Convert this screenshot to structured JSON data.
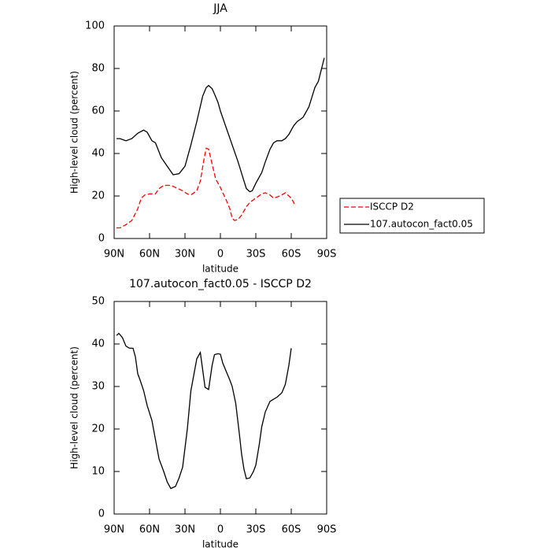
{
  "chart_data": [
    {
      "type": "line",
      "title": "JJA",
      "x_label": "latitude",
      "y_label": "High-level cloud (percent)",
      "xlim": [
        90,
        -90
      ],
      "xticks": [
        {
          "value": 90,
          "label": "90N"
        },
        {
          "value": 60,
          "label": "60N"
        },
        {
          "value": 30,
          "label": "30N"
        },
        0,
        {
          "value": -30,
          "label": "30S"
        },
        {
          "value": -60,
          "label": "60S"
        },
        {
          "value": -90,
          "label": "90S"
        }
      ],
      "ylim": [
        0,
        100
      ],
      "yticks": [
        0,
        20,
        40,
        60,
        80,
        100
      ],
      "legend": "right",
      "series": [
        {
          "name": "ISCCP D2",
          "color": "#ff0000",
          "style": "dashed",
          "x": [
            88,
            85,
            80,
            75,
            70,
            67,
            64,
            60,
            55,
            52,
            48,
            42,
            38,
            32,
            28,
            25,
            20,
            17,
            14,
            12,
            10,
            7,
            4,
            0,
            -5,
            -8,
            -10,
            -12,
            -15,
            -18,
            -22,
            -25,
            -30,
            -35,
            -38,
            -42,
            -45,
            -48,
            -52,
            -55,
            -58,
            -60,
            -63
          ],
          "values": [
            5,
            5,
            6.5,
            8.5,
            14,
            19,
            20.5,
            21,
            21,
            23.5,
            25,
            25,
            24,
            22.5,
            21,
            20.5,
            22.5,
            27,
            37,
            42.5,
            42,
            35,
            28,
            24,
            18,
            14,
            9.5,
            8.5,
            9,
            11,
            15,
            17,
            19,
            21,
            21.5,
            20.5,
            19,
            19.5,
            20.5,
            21.5,
            20,
            19,
            16
          ]
        },
        {
          "name": "107.autocon_fact0.05",
          "color": "#000000",
          "style": "solid",
          "x": [
            88,
            85,
            80,
            75,
            70,
            65,
            62,
            58,
            55,
            50,
            45,
            40,
            35,
            30,
            25,
            20,
            15,
            12,
            10,
            7,
            5,
            2,
            0,
            -5,
            -10,
            -15,
            -20,
            -22,
            -25,
            -27,
            -30,
            -35,
            -38,
            -42,
            -45,
            -48,
            -52,
            -55,
            -58,
            -62,
            -65,
            -70,
            -73,
            -75,
            -80,
            -83,
            -88
          ],
          "values": [
            47,
            47,
            46,
            47,
            49.5,
            51,
            50,
            46,
            45,
            38,
            34,
            30,
            30.5,
            34,
            44,
            55,
            67,
            71,
            72,
            70.5,
            68,
            64,
            60,
            52,
            44,
            36,
            27,
            23.5,
            22,
            22.5,
            26,
            31,
            36,
            42,
            45,
            46,
            46,
            47,
            49,
            53,
            55,
            57,
            60,
            62,
            71,
            74,
            85
          ]
        }
      ]
    },
    {
      "type": "line",
      "title": "107.autocon_fact0.05 - ISCCP D2",
      "x_label": "latitude",
      "y_label": "High-level cloud (percent)",
      "xlim": [
        90,
        -90
      ],
      "xticks": [
        {
          "value": 90,
          "label": "90N"
        },
        {
          "value": 60,
          "label": "60N"
        },
        {
          "value": 30,
          "label": "30N"
        },
        0,
        {
          "value": -30,
          "label": "30S"
        },
        {
          "value": -60,
          "label": "60S"
        },
        {
          "value": -90,
          "label": "90S"
        }
      ],
      "ylim": [
        0,
        50
      ],
      "yticks": [
        0,
        10,
        20,
        30,
        40,
        50
      ],
      "series": [
        {
          "color": "#000000",
          "style": "solid",
          "x": [
            88,
            86,
            83,
            80,
            77,
            74,
            72,
            70,
            68,
            65,
            62,
            58,
            55,
            52,
            48,
            45,
            42,
            38,
            35,
            32,
            28,
            25,
            22,
            20,
            17,
            13,
            10,
            7,
            5,
            2,
            0,
            -2,
            -5,
            -8,
            -10,
            -13,
            -16,
            -18,
            -20,
            -22,
            -25,
            -28,
            -30,
            -33,
            -35,
            -38,
            -42,
            -45,
            -48,
            -52,
            -55,
            -58,
            -60
          ],
          "values": [
            42,
            42.5,
            41.5,
            39.5,
            39,
            39,
            37,
            33,
            31.5,
            29,
            25.5,
            22,
            17.5,
            13,
            10,
            7.5,
            6,
            6.5,
            8.5,
            11,
            20,
            29,
            33.5,
            36.5,
            38,
            29.8,
            29.3,
            35,
            37.5,
            37.7,
            37.6,
            35.5,
            33.5,
            31.5,
            30,
            26,
            19,
            14,
            10.5,
            8.3,
            8.5,
            10,
            11.5,
            16.5,
            20.5,
            24,
            26.5,
            27,
            27.5,
            28.5,
            30.5,
            35,
            39
          ]
        }
      ]
    }
  ]
}
